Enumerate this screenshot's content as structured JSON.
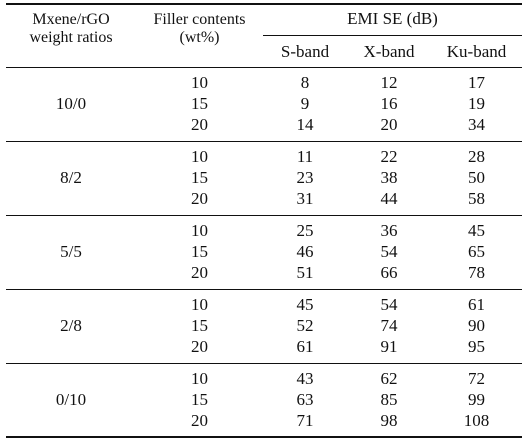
{
  "header": {
    "ratio_line1": "Mxene/rGO",
    "ratio_line2": "weight ratios",
    "filler_line1": "Filler contents",
    "filler_line2": "(wt%)",
    "emi": "EMI SE (dB)",
    "s_band": "S-band",
    "x_band": "X-band",
    "ku_band": "Ku-band"
  },
  "groups": [
    {
      "ratio": "10/0",
      "rows": [
        {
          "filler": "10",
          "s": "8",
          "x": "12",
          "ku": "17"
        },
        {
          "filler": "15",
          "s": "9",
          "x": "16",
          "ku": "19"
        },
        {
          "filler": "20",
          "s": "14",
          "x": "20",
          "ku": "34"
        }
      ]
    },
    {
      "ratio": "8/2",
      "rows": [
        {
          "filler": "10",
          "s": "11",
          "x": "22",
          "ku": "28"
        },
        {
          "filler": "15",
          "s": "23",
          "x": "38",
          "ku": "50"
        },
        {
          "filler": "20",
          "s": "31",
          "x": "44",
          "ku": "58"
        }
      ]
    },
    {
      "ratio": "5/5",
      "rows": [
        {
          "filler": "10",
          "s": "25",
          "x": "36",
          "ku": "45"
        },
        {
          "filler": "15",
          "s": "46",
          "x": "54",
          "ku": "65"
        },
        {
          "filler": "20",
          "s": "51",
          "x": "66",
          "ku": "78"
        }
      ]
    },
    {
      "ratio": "2/8",
      "rows": [
        {
          "filler": "10",
          "s": "45",
          "x": "54",
          "ku": "61"
        },
        {
          "filler": "15",
          "s": "52",
          "x": "74",
          "ku": "90"
        },
        {
          "filler": "20",
          "s": "61",
          "x": "91",
          "ku": "95"
        }
      ]
    },
    {
      "ratio": "0/10",
      "rows": [
        {
          "filler": "10",
          "s": "43",
          "x": "62",
          "ku": "72"
        },
        {
          "filler": "15",
          "s": "63",
          "x": "85",
          "ku": "99"
        },
        {
          "filler": "20",
          "s": "71",
          "x": "98",
          "ku": "108"
        }
      ]
    }
  ]
}
